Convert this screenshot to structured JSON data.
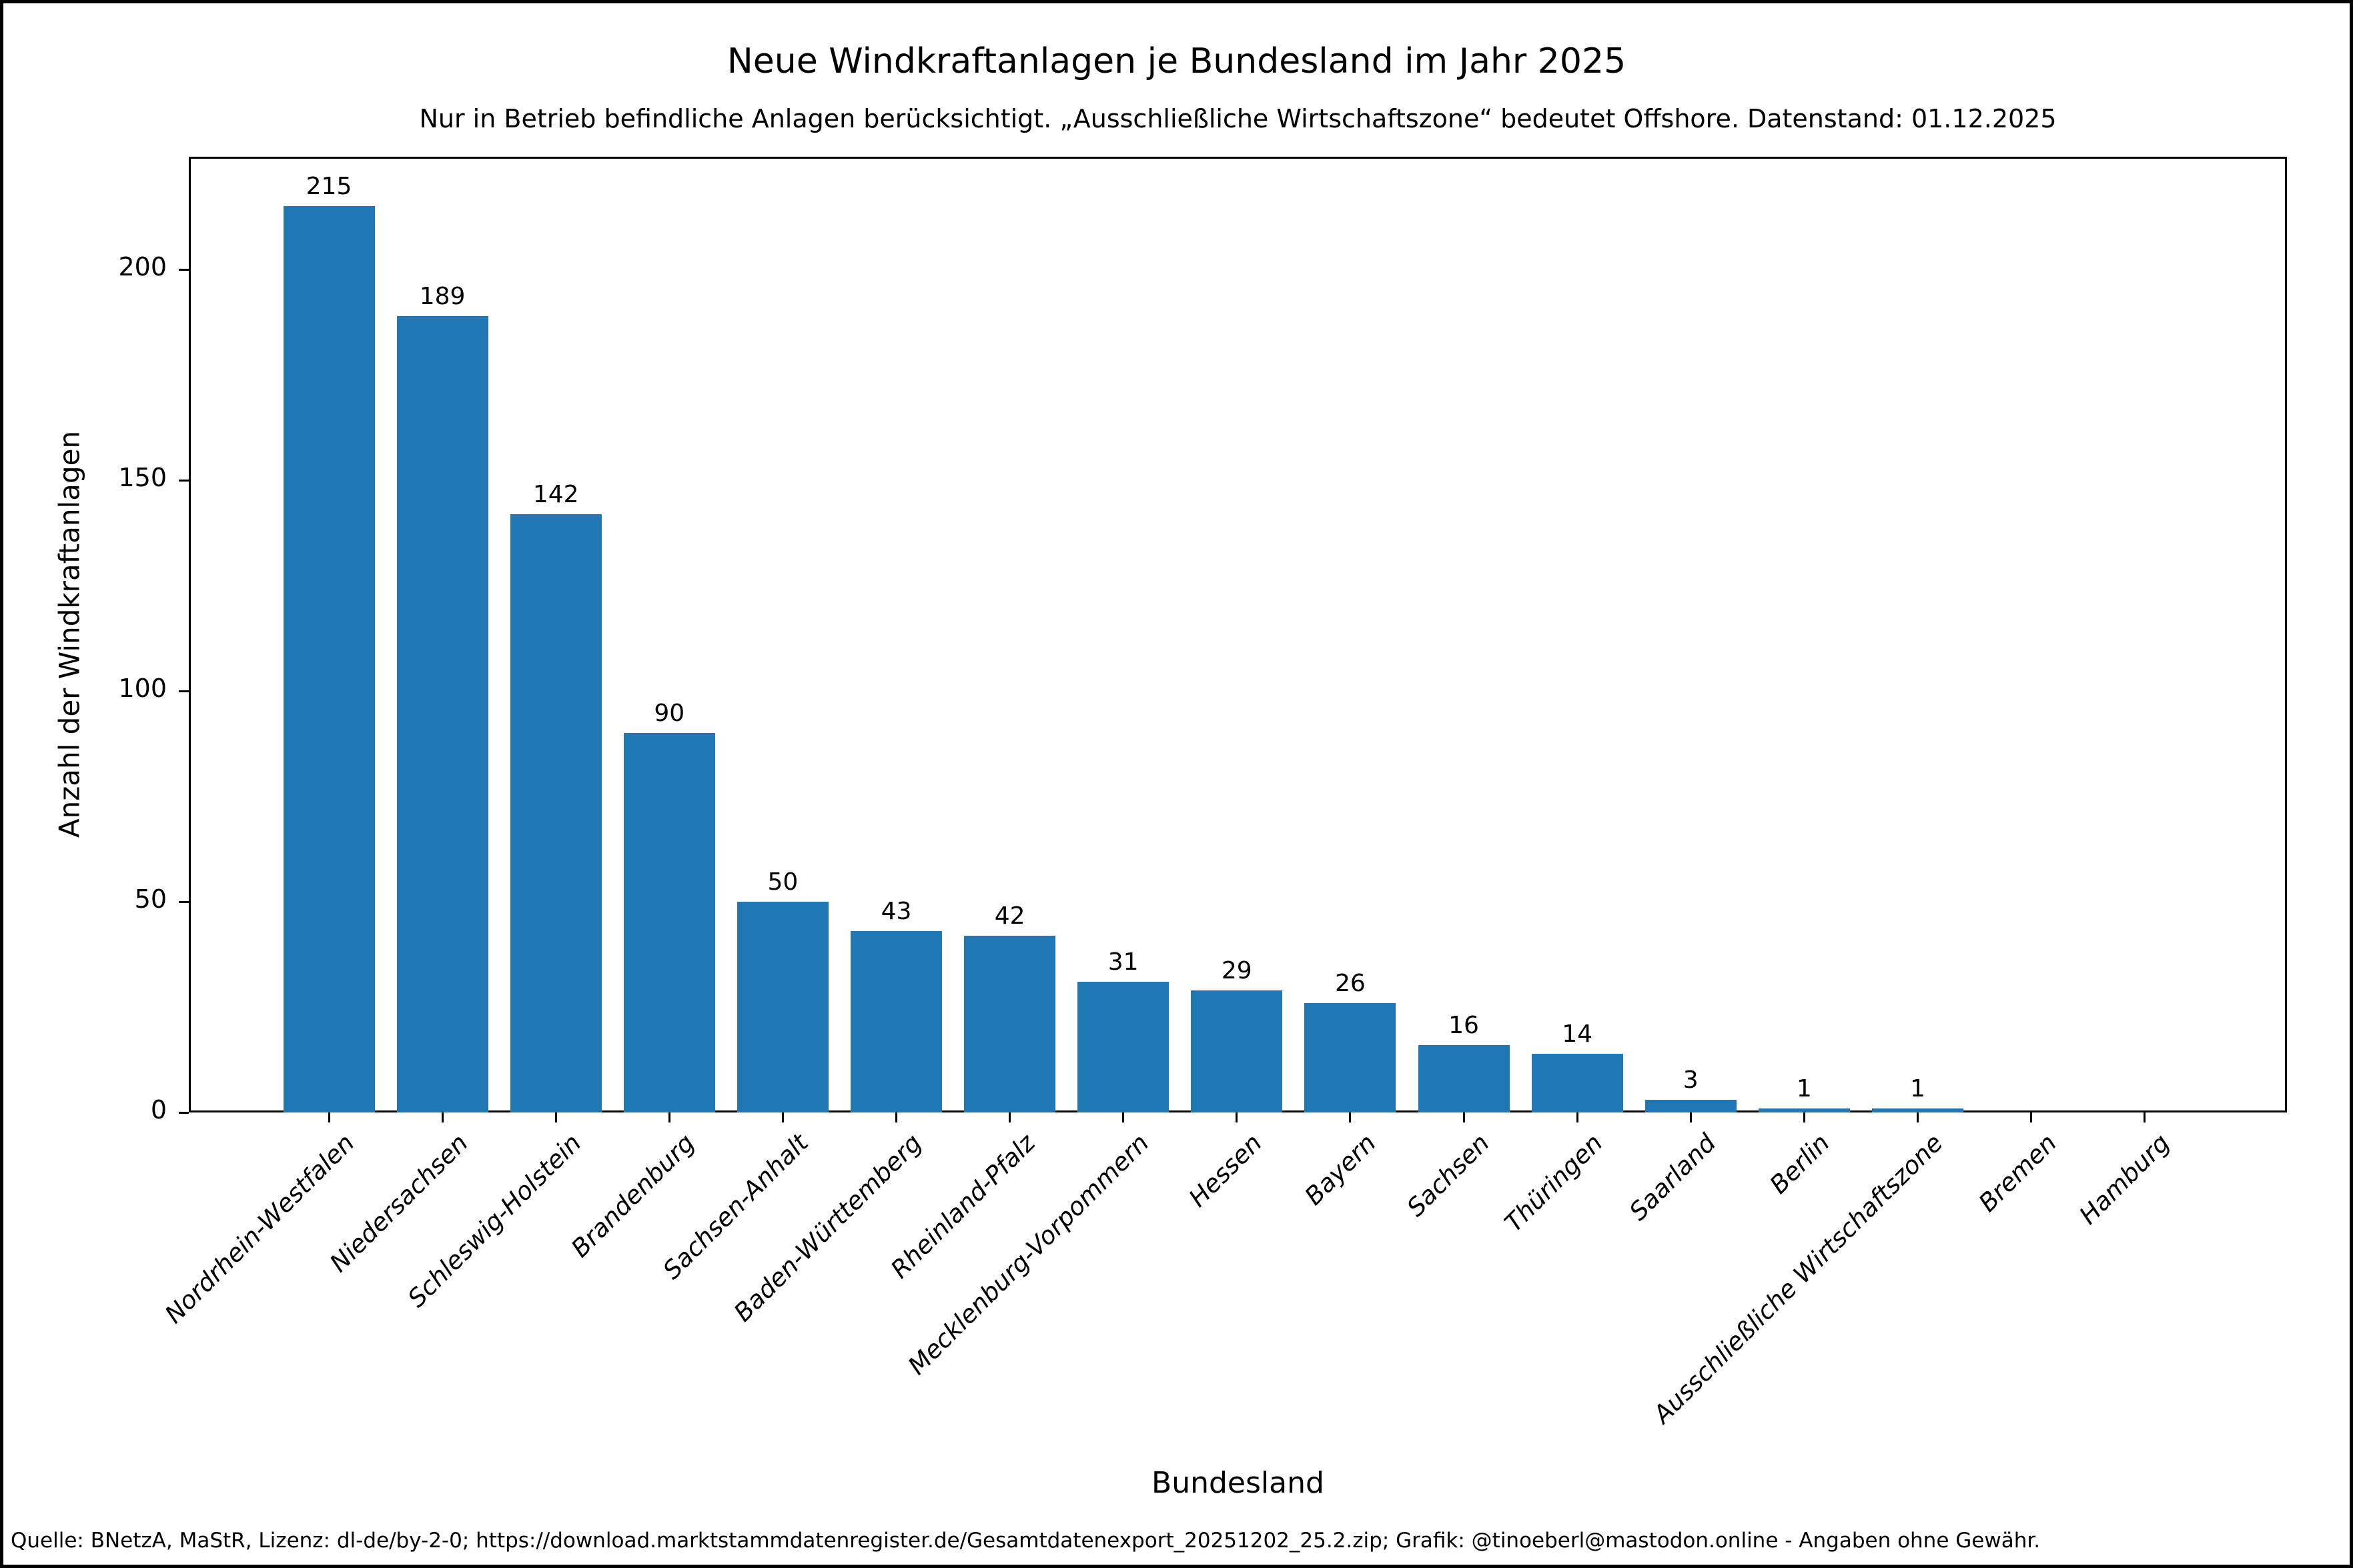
{
  "chart_data": {
    "type": "bar",
    "title": "Neue Windkraftanlagen je Bundesland im Jahr 2025",
    "subtitle": "Nur in Betrieb befindliche Anlagen berücksichtigt. „Ausschließliche Wirtschaftszone“ bedeutet Offshore. Datenstand: 01.12.2025",
    "xlabel": "Bundesland",
    "ylabel": "Anzahl der Windkraftanlagen",
    "categories": [
      "Nordrhein-Westfalen",
      "Niedersachsen",
      "Schleswig-Holstein",
      "Brandenburg",
      "Sachsen-Anhalt",
      "Baden-Württemberg",
      "Rheinland-Pfalz",
      "Mecklenburg-Vorpommern",
      "Hessen",
      "Bayern",
      "Sachsen",
      "Thüringen",
      "Saarland",
      "Berlin",
      "Ausschließliche Wirtschaftszone",
      "Bremen",
      "Hamburg"
    ],
    "values": [
      215,
      189,
      142,
      90,
      50,
      43,
      42,
      31,
      29,
      26,
      16,
      14,
      3,
      1,
      1,
      0,
      0
    ],
    "yticks": [
      0,
      50,
      100,
      150,
      200
    ],
    "ylim": [
      0,
      227
    ],
    "grid": false,
    "legend": "none",
    "bar_color": "#1f77b4",
    "footer": "Quelle: BNetzA, MaStR, Lizenz: dl-de/by-2-0; https://download.marktstammdatenregister.de/Gesamtdatenexport_20251202_25.2.zip; Grafik: @tinoeberl@mastodon.online - Angaben ohne Gewähr."
  }
}
